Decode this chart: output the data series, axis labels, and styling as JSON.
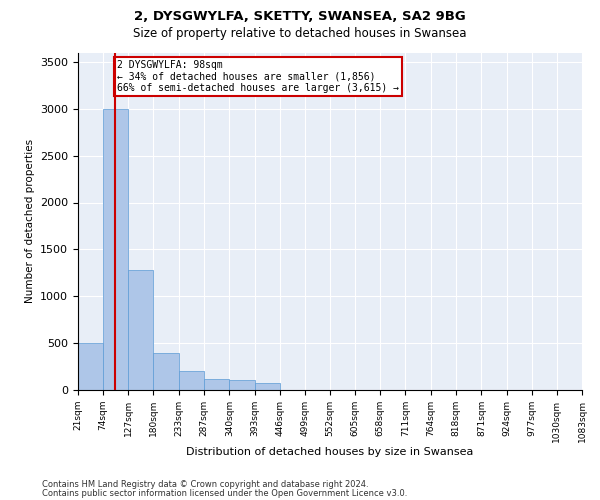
{
  "title1": "2, DYSGWYLFA, SKETTY, SWANSEA, SA2 9BG",
  "title2": "Size of property relative to detached houses in Swansea",
  "xlabel": "Distribution of detached houses by size in Swansea",
  "ylabel": "Number of detached properties",
  "footnote1": "Contains HM Land Registry data © Crown copyright and database right 2024.",
  "footnote2": "Contains public sector information licensed under the Open Government Licence v3.0.",
  "annotation_line1": "2 DYSGWYLFA: 98sqm",
  "annotation_line2": "← 34% of detached houses are smaller (1,856)",
  "annotation_line3": "66% of semi-detached houses are larger (3,615) →",
  "property_sqm": 98,
  "bar_edges": [
    21,
    74,
    127,
    180,
    233,
    287,
    340,
    393,
    446,
    499,
    552,
    605,
    658,
    711,
    764,
    818,
    871,
    924,
    977,
    1030,
    1083
  ],
  "bar_heights": [
    500,
    3000,
    1280,
    395,
    200,
    115,
    110,
    80,
    0,
    0,
    0,
    0,
    0,
    0,
    0,
    0,
    0,
    0,
    0,
    0
  ],
  "bar_color": "#aec6e8",
  "bar_edgecolor": "#5b9bd5",
  "line_color": "#cc0000",
  "annotation_box_edgecolor": "#cc0000",
  "bg_color": "#e8eef7",
  "grid_color": "#ffffff",
  "ylim": [
    0,
    3600
  ],
  "yticks": [
    0,
    500,
    1000,
    1500,
    2000,
    2500,
    3000,
    3500
  ]
}
